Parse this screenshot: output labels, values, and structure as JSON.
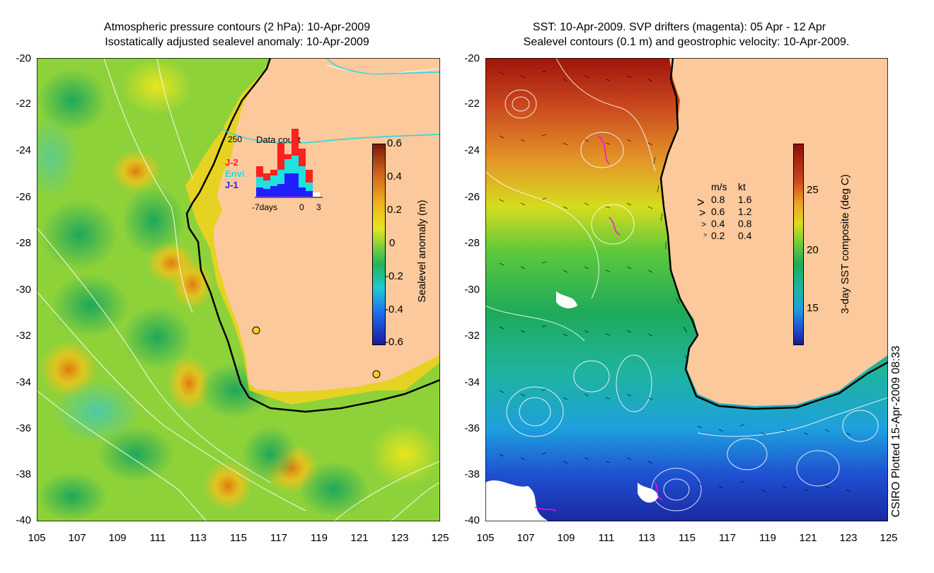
{
  "left_panel": {
    "title_line1": "Atmospheric pressure contours (2 hPa): 10-Apr-2009",
    "title_line2": "Isostatically adjusted sealevel anomaly: 10-Apr-2009",
    "colorbar_label": "Sealevel anomaly (m)",
    "colorbar_ticks": [
      "0.6",
      "0.4",
      "0.2",
      "0",
      "-0.2",
      "-0.4",
      "-0.6"
    ],
    "inset": {
      "max_label": "250",
      "title": "Data count",
      "legend": [
        {
          "name": "J-2",
          "color": "#ff2020"
        },
        {
          "name": "Envi",
          "color": "#20e0e0"
        },
        {
          "name": "J-1",
          "color": "#2020ff"
        }
      ],
      "x_left": "-7days",
      "x_mid": "0",
      "x_right": "3"
    },
    "colors": {
      "land": "#fbc99b",
      "coast": "#000000"
    }
  },
  "right_panel": {
    "title_line1": "SST: 10-Apr-2009. SVP drifters (magenta): 05 Apr - 12 Apr",
    "title_line2": "Sealevel contours (0.1 m) and geostrophic velocity: 10-Apr-2009.",
    "colorbar_label": "3-day SST composite (deg C)",
    "colorbar_ticks": [
      "25",
      "20",
      "15"
    ],
    "velocity_legend": {
      "header_ms": "m/s",
      "header_kt": "kt",
      "rows": [
        {
          "ms": "0.8",
          "kt": "1.6"
        },
        {
          "ms": "0.6",
          "kt": "1.2"
        },
        {
          "ms": "0.4",
          "kt": "0.8"
        },
        {
          "ms": "0.2",
          "kt": "0.4"
        }
      ]
    },
    "colors": {
      "land": "#fbc99b",
      "drifter": "#ff00ff"
    }
  },
  "axes": {
    "y_ticks": [
      "-20",
      "-22",
      "-24",
      "-26",
      "-28",
      "-30",
      "-32",
      "-34",
      "-36",
      "-38",
      "-40"
    ],
    "x_ticks": [
      "105",
      "107",
      "109",
      "111",
      "113",
      "115",
      "117",
      "119",
      "121",
      "123",
      "125"
    ]
  },
  "credit": "CSIRO Plotted 15-Apr-2009 08:33"
}
